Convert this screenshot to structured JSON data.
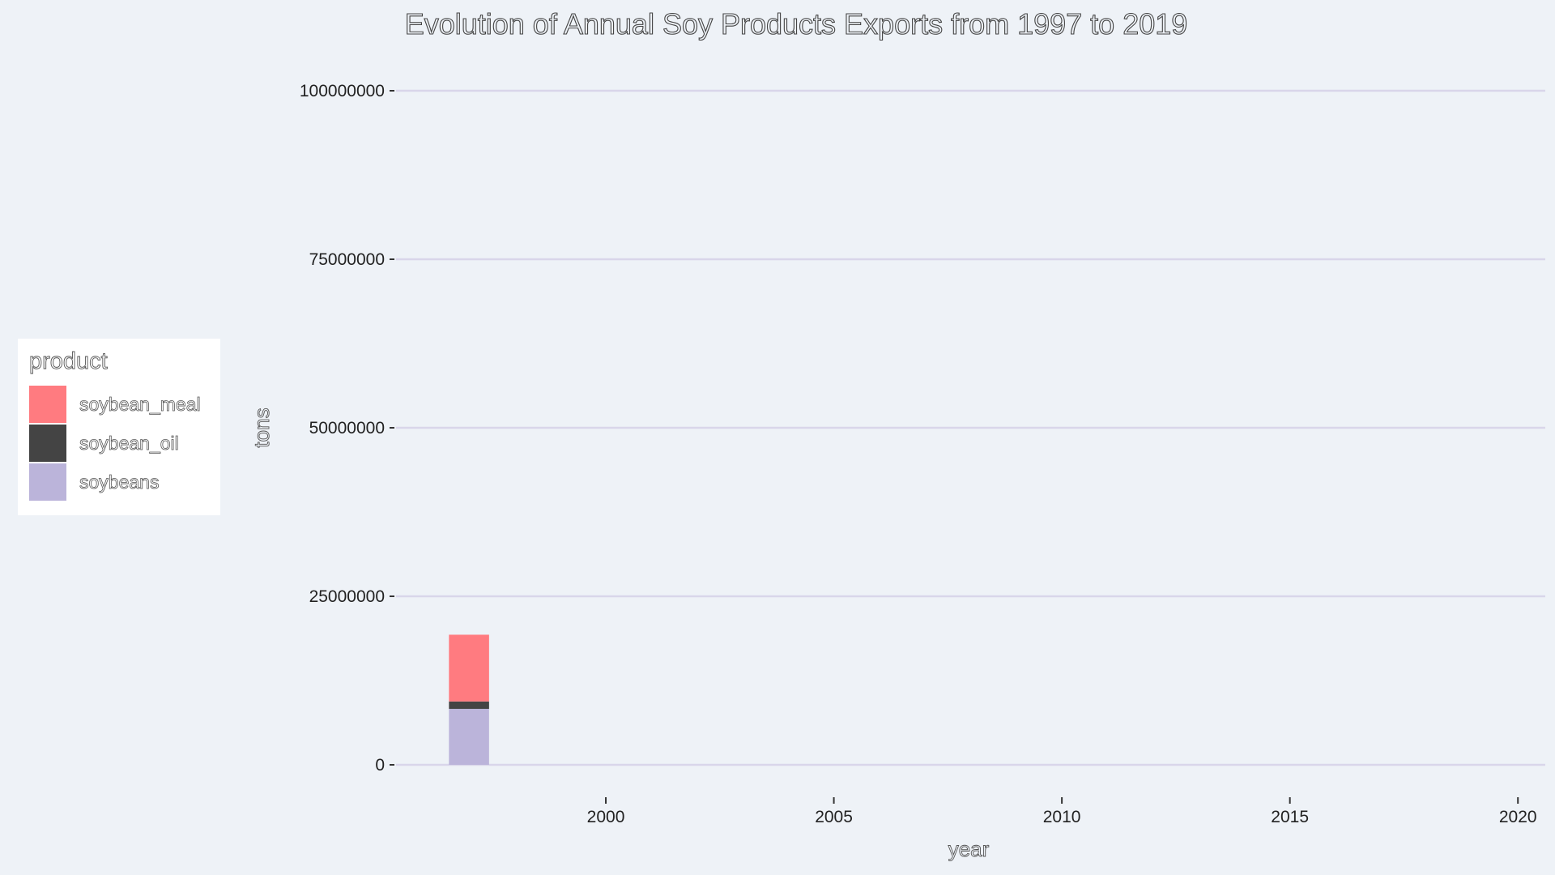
{
  "chart_data": {
    "type": "bar",
    "stacked": true,
    "title": "Evolution of Annual Soy Products Exports from 1997 to 2019",
    "xlabel": "year",
    "ylabel": "tons",
    "x": [
      1997
    ],
    "series": [
      {
        "name": "soybeans",
        "color": "#bbb4da",
        "values": [
          8300000
        ]
      },
      {
        "name": "soybean_oil",
        "color": "#444444",
        "values": [
          1100000
        ]
      },
      {
        "name": "soybean_meal",
        "color": "#ff7b80",
        "values": [
          9900000
        ]
      }
    ],
    "xlim": [
      1995.4,
      2020.6
    ],
    "ylim": [
      0,
      100000000
    ],
    "x_ticks": [
      "2000",
      "2005",
      "2010",
      "2015",
      "2020"
    ],
    "x_tick_values": [
      2000,
      2005,
      2010,
      2015,
      2020
    ],
    "y_ticks": [
      "0",
      "25000000",
      "50000000",
      "75000000",
      "100000000"
    ],
    "y_tick_values": [
      0,
      25000000,
      50000000,
      75000000,
      100000000
    ],
    "grid": true,
    "legend": {
      "title": "product",
      "placement": "left",
      "entries": [
        "soybean_meal",
        "soybean_oil",
        "soybeans"
      ]
    },
    "background_color": "#eef2f7"
  }
}
